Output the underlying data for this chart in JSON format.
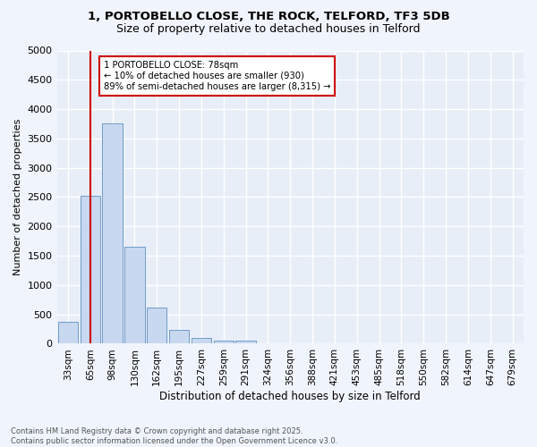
{
  "title_line1": "1, PORTOBELLO CLOSE, THE ROCK, TELFORD, TF3 5DB",
  "title_line2": "Size of property relative to detached houses in Telford",
  "xlabel": "Distribution of detached houses by size in Telford",
  "ylabel": "Number of detached properties",
  "categories": [
    "33sqm",
    "65sqm",
    "98sqm",
    "130sqm",
    "162sqm",
    "195sqm",
    "227sqm",
    "259sqm",
    "291sqm",
    "324sqm",
    "356sqm",
    "388sqm",
    "421sqm",
    "453sqm",
    "485sqm",
    "518sqm",
    "550sqm",
    "582sqm",
    "614sqm",
    "647sqm",
    "679sqm"
  ],
  "values": [
    375,
    2525,
    3750,
    1650,
    620,
    230,
    105,
    55,
    55,
    0,
    0,
    0,
    0,
    0,
    0,
    0,
    0,
    0,
    0,
    0,
    0
  ],
  "bar_color": "#c8d8f0",
  "bar_edge_color": "#6090c0",
  "background_color": "#e8eef8",
  "fig_background_color": "#f0f4fc",
  "grid_color": "#ffffff",
  "vline_x": 1,
  "vline_color": "#cc0000",
  "ylim": [
    0,
    5000
  ],
  "yticks": [
    0,
    500,
    1000,
    1500,
    2000,
    2500,
    3000,
    3500,
    4000,
    4500,
    5000
  ],
  "annotation_title": "1 PORTOBELLO CLOSE: 78sqm",
  "annotation_line1": "← 10% of detached houses are smaller (930)",
  "annotation_line2": "89% of semi-detached houses are larger (8,315) →",
  "annotation_box_color": "#ffffff",
  "annotation_box_edge": "#cc0000",
  "footer_line1": "Contains HM Land Registry data © Crown copyright and database right 2025.",
  "footer_line2": "Contains public sector information licensed under the Open Government Licence v3.0."
}
